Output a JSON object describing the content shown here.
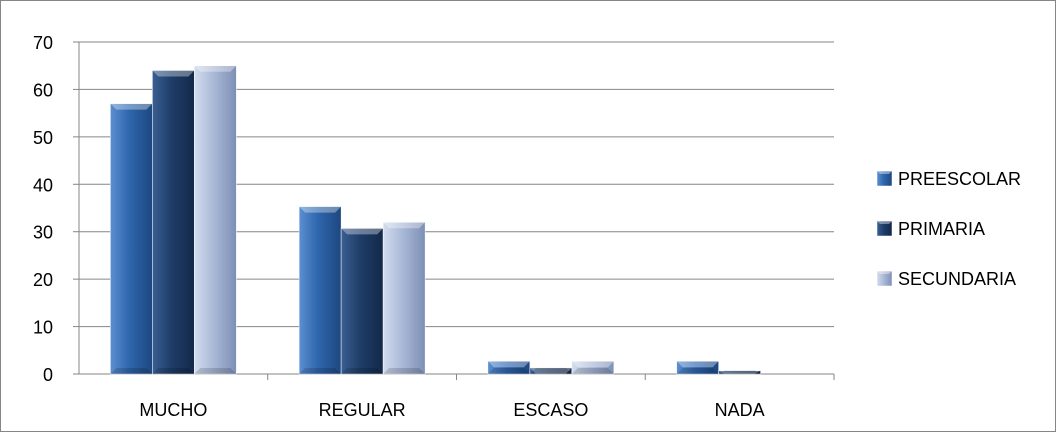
{
  "chart_data": {
    "type": "bar",
    "categories": [
      "MUCHO",
      "REGULAR",
      "ESCASO",
      "NADA"
    ],
    "series": [
      {
        "name": "PREESCOLAR",
        "color": "#2e5f9e",
        "values": [
          57,
          35.3,
          2.7,
          2.7
        ]
      },
      {
        "name": "PRIMARIA",
        "color": "#1f3d66",
        "values": [
          64,
          30.7,
          1.3,
          0.7
        ]
      },
      {
        "name": "SECUNDARIA",
        "color": "#a6b6d4",
        "values": [
          65,
          32,
          2.7,
          0
        ]
      }
    ],
    "ylim": [
      0,
      70
    ],
    "yticks": [
      0,
      10,
      20,
      30,
      40,
      50,
      60,
      70
    ],
    "grid": true,
    "legend": "right",
    "title": "",
    "xlabel": "",
    "ylabel": ""
  }
}
